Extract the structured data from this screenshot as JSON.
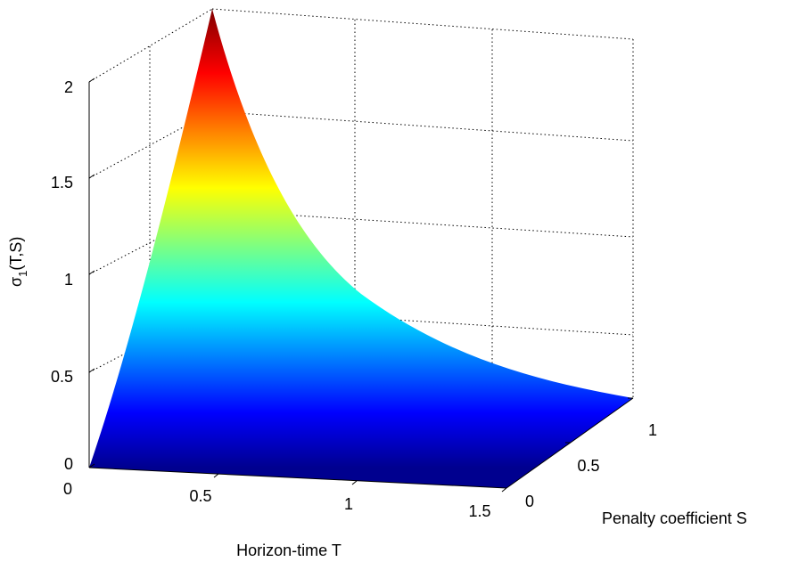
{
  "chart_data": {
    "type": "surface",
    "xlabel": "Horizon-time T",
    "ylabel": "Penalty coefficient S",
    "zlabel": {
      "base": "σ",
      "sub": "1",
      "rest": "(T,S)"
    },
    "x_ticks": [
      "0",
      "0.5",
      "1",
      "1.5"
    ],
    "y_ticks": [
      "0",
      "0.5",
      "1"
    ],
    "z_ticks": [
      "0",
      "0.5",
      "1",
      "1.5",
      "2"
    ],
    "xlim": [
      0,
      1.5
    ],
    "ylim": [
      0,
      1.1
    ],
    "zlim": [
      0,
      2.3
    ],
    "grid": true,
    "colormap": "jet",
    "surface_samples": [
      {
        "T": 0,
        "S": 0,
        "z": 0
      },
      {
        "T": 0,
        "S": 1.1,
        "z": 2.3
      },
      {
        "T": 1.5,
        "S": 0,
        "z": 0
      },
      {
        "T": 1.5,
        "S": 1.1,
        "z": 0.09
      }
    ]
  }
}
